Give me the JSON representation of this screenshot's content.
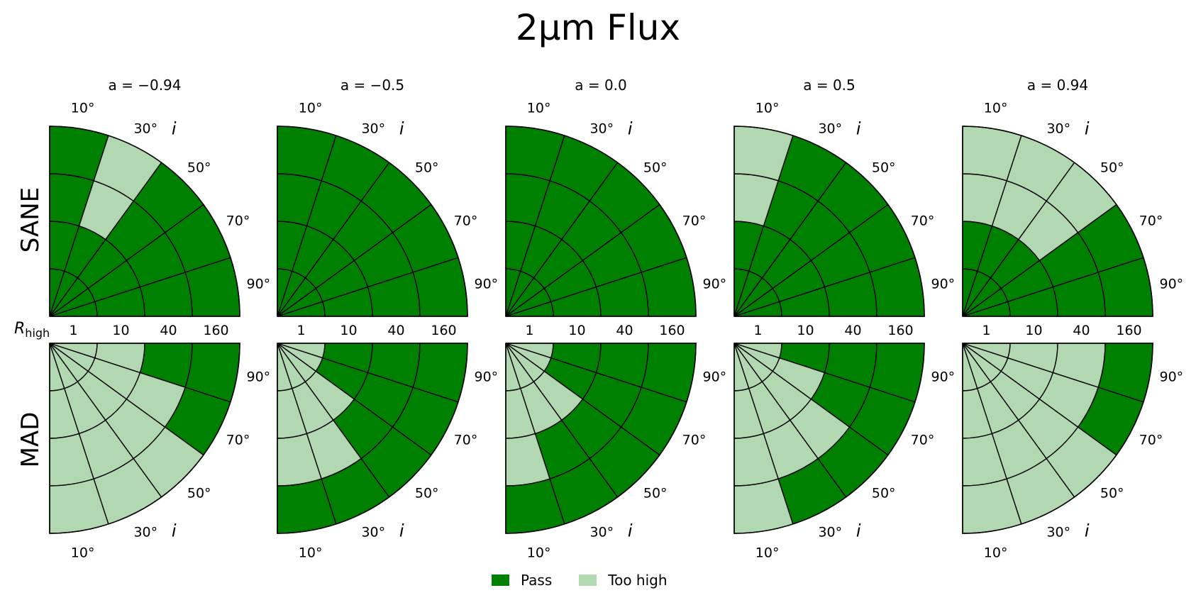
{
  "title": "2μm Flux",
  "chart_data": {
    "type": "polar-grid",
    "title": "2μm Flux",
    "rows": [
      "SANE",
      "MAD"
    ],
    "spins": [
      "a = −0.94",
      "a = −0.5",
      "a = 0.0",
      "a = 0.5",
      "a = 0.94"
    ],
    "radial_label": "R_high",
    "radial_ticks": [
      "1",
      "10",
      "40",
      "160"
    ],
    "angular_label": "i",
    "angular_ticks": [
      "10°",
      "30°",
      "50°",
      "70°",
      "90°"
    ],
    "legend": [
      "Pass",
      "Too high"
    ],
    "colors": {
      "Pass": "#008000",
      "Too high": "#b2d8b2"
    },
    "status_note": "panels[row][spin][R_high index][inclination index], 0 = Pass, 1 = Too high",
    "panels": [
      [
        [
          [
            0,
            0,
            0,
            0,
            0
          ],
          [
            0,
            0,
            0,
            0,
            0
          ],
          [
            0,
            0,
            0,
            1,
            0
          ],
          [
            0,
            0,
            0,
            1,
            0
          ]
        ],
        [
          [
            0,
            0,
            0,
            0,
            0
          ],
          [
            0,
            0,
            0,
            0,
            0
          ],
          [
            0,
            0,
            0,
            0,
            0
          ],
          [
            0,
            0,
            0,
            0,
            0
          ]
        ],
        [
          [
            0,
            0,
            0,
            0,
            0
          ],
          [
            0,
            0,
            0,
            0,
            0
          ],
          [
            0,
            0,
            0,
            0,
            0
          ],
          [
            0,
            0,
            0,
            0,
            0
          ]
        ],
        [
          [
            0,
            0,
            0,
            0,
            0
          ],
          [
            0,
            0,
            0,
            0,
            0
          ],
          [
            0,
            0,
            0,
            0,
            1
          ],
          [
            0,
            0,
            0,
            0,
            1
          ]
        ],
        [
          [
            0,
            0,
            0,
            0,
            0
          ],
          [
            0,
            0,
            0,
            0,
            0
          ],
          [
            0,
            0,
            1,
            1,
            1
          ],
          [
            0,
            0,
            1,
            1,
            1
          ]
        ]
      ],
      [
        [
          [
            1,
            1,
            1,
            1,
            1
          ],
          [
            1,
            1,
            1,
            1,
            1
          ],
          [
            0,
            1,
            1,
            1,
            1
          ],
          [
            0,
            0,
            1,
            1,
            1
          ]
        ],
        [
          [
            1,
            1,
            1,
            1,
            1
          ],
          [
            0,
            0,
            1,
            1,
            1
          ],
          [
            0,
            0,
            0,
            1,
            1
          ],
          [
            0,
            0,
            0,
            0,
            0
          ]
        ],
        [
          [
            1,
            1,
            1,
            1,
            1
          ],
          [
            0,
            0,
            1,
            1,
            1
          ],
          [
            0,
            0,
            0,
            0,
            1
          ],
          [
            0,
            0,
            0,
            0,
            0
          ]
        ],
        [
          [
            1,
            1,
            1,
            1,
            1
          ],
          [
            0,
            1,
            1,
            1,
            1
          ],
          [
            0,
            0,
            1,
            1,
            1
          ],
          [
            0,
            0,
            0,
            0,
            1
          ]
        ],
        [
          [
            1,
            1,
            1,
            1,
            1
          ],
          [
            1,
            1,
            1,
            1,
            1
          ],
          [
            1,
            1,
            1,
            1,
            1
          ],
          [
            0,
            0,
            1,
            1,
            1
          ]
        ]
      ]
    ]
  }
}
